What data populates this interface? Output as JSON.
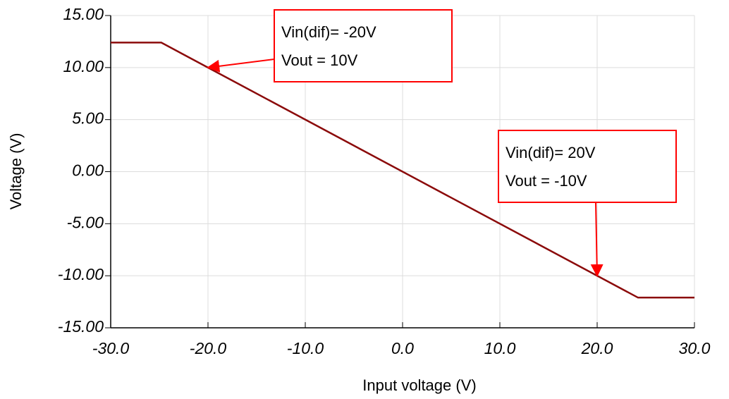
{
  "chart_data": {
    "type": "line",
    "xlabel": "Input voltage (V)",
    "ylabel": "Voltage (V)",
    "x": [
      -30,
      -24.8,
      24.2,
      30
    ],
    "series": [
      {
        "color": "#8b0a0a",
        "values": [
          12.4,
          12.4,
          -12.1,
          -12.1
        ]
      }
    ],
    "xlim": [
      -30,
      30
    ],
    "xticks": [
      {
        "value": -30,
        "label": "-30.0"
      },
      {
        "value": -20,
        "label": "-20.0"
      },
      {
        "value": -10,
        "label": "-10.0"
      },
      {
        "value": 0,
        "label": "0.0"
      },
      {
        "value": 10,
        "label": "10.0"
      },
      {
        "value": 20,
        "label": "20.0"
      },
      {
        "value": 30,
        "label": "30.0"
      }
    ],
    "ylim": [
      -15,
      15
    ],
    "yticks": [
      {
        "value": 15,
        "label": "15.00"
      },
      {
        "value": 10,
        "label": "10.00"
      },
      {
        "value": 5,
        "label": "5.00"
      },
      {
        "value": 0,
        "label": "0.00"
      },
      {
        "value": -5,
        "label": "-5.00"
      },
      {
        "value": -10,
        "label": "-10.00"
      },
      {
        "value": -15,
        "label": "-15.00"
      }
    ],
    "grid": true,
    "annotations": [
      {
        "lines": [
          "Vin(dif)= -20V",
          "Vout = 10V"
        ],
        "point": [
          -20,
          10
        ],
        "color": "#ff0000"
      },
      {
        "lines": [
          "Vin(dif)= 20V",
          "Vout = -10V"
        ],
        "point": [
          20,
          -10
        ],
        "color": "#ff0000"
      }
    ]
  }
}
